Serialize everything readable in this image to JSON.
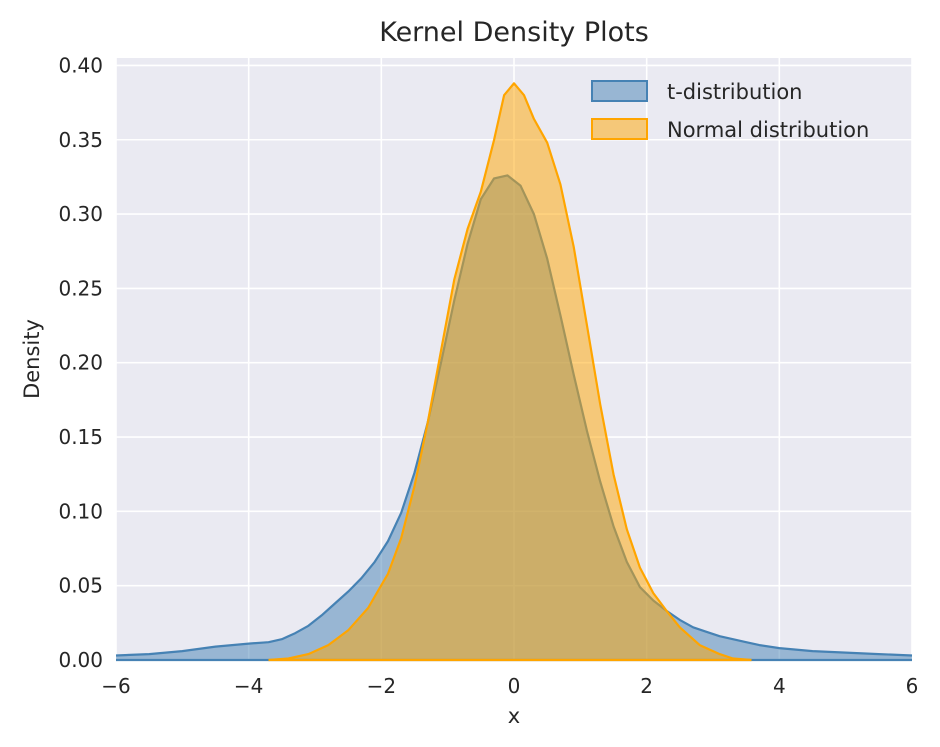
{
  "chart_data": {
    "type": "area",
    "title": "Kernel Density Plots",
    "xlabel": "x",
    "ylabel": "Density",
    "xlim": [
      -6,
      6
    ],
    "ylim": [
      0,
      0.405
    ],
    "x_ticks": [
      -6,
      -4,
      -2,
      0,
      2,
      4,
      6
    ],
    "x_tick_labels": [
      "−6",
      "−4",
      "−2",
      "0",
      "2",
      "4",
      "6"
    ],
    "y_ticks": [
      0,
      0.05,
      0.1,
      0.15,
      0.2,
      0.25,
      0.3,
      0.35,
      0.4
    ],
    "y_tick_labels": [
      "0.00",
      "0.05",
      "0.10",
      "0.15",
      "0.20",
      "0.25",
      "0.30",
      "0.35",
      "0.40"
    ],
    "grid": true,
    "legend_position": "top-right",
    "series": [
      {
        "name": "t-distribution",
        "color": "#4682b4",
        "fill_opacity": 0.5,
        "x": [
          -6.0,
          -5.5,
          -5.0,
          -4.5,
          -4.0,
          -3.7,
          -3.5,
          -3.3,
          -3.1,
          -2.9,
          -2.7,
          -2.5,
          -2.3,
          -2.1,
          -1.9,
          -1.7,
          -1.5,
          -1.3,
          -1.1,
          -0.9,
          -0.7,
          -0.5,
          -0.3,
          -0.1,
          0.1,
          0.3,
          0.5,
          0.7,
          0.9,
          1.1,
          1.3,
          1.5,
          1.7,
          1.9,
          2.1,
          2.3,
          2.5,
          2.7,
          2.9,
          3.1,
          3.3,
          3.5,
          3.7,
          4.0,
          4.5,
          5.0,
          5.5,
          6.0
        ],
        "y": [
          0.003,
          0.004,
          0.006,
          0.009,
          0.011,
          0.012,
          0.014,
          0.018,
          0.023,
          0.03,
          0.038,
          0.046,
          0.055,
          0.066,
          0.08,
          0.099,
          0.126,
          0.16,
          0.2,
          0.242,
          0.28,
          0.31,
          0.324,
          0.326,
          0.319,
          0.3,
          0.27,
          0.232,
          0.192,
          0.154,
          0.12,
          0.09,
          0.066,
          0.049,
          0.04,
          0.033,
          0.027,
          0.022,
          0.019,
          0.016,
          0.014,
          0.012,
          0.01,
          0.008,
          0.006,
          0.005,
          0.004,
          0.003
        ]
      },
      {
        "name": "Normal distribution",
        "color": "#ffa500",
        "fill_opacity": 0.5,
        "x": [
          -3.7,
          -3.4,
          -3.1,
          -2.8,
          -2.5,
          -2.2,
          -1.9,
          -1.7,
          -1.5,
          -1.3,
          -1.1,
          -0.9,
          -0.7,
          -0.5,
          -0.3,
          -0.15,
          0.0,
          0.15,
          0.3,
          0.5,
          0.7,
          0.9,
          1.1,
          1.3,
          1.5,
          1.7,
          1.9,
          2.1,
          2.3,
          2.5,
          2.8,
          3.1,
          3.3,
          3.58
        ],
        "y": [
          0.0,
          0.001,
          0.004,
          0.01,
          0.02,
          0.035,
          0.058,
          0.082,
          0.117,
          0.16,
          0.208,
          0.256,
          0.29,
          0.315,
          0.35,
          0.38,
          0.388,
          0.38,
          0.364,
          0.348,
          0.32,
          0.278,
          0.225,
          0.172,
          0.125,
          0.088,
          0.062,
          0.045,
          0.033,
          0.022,
          0.01,
          0.004,
          0.001,
          0.0
        ]
      }
    ]
  }
}
